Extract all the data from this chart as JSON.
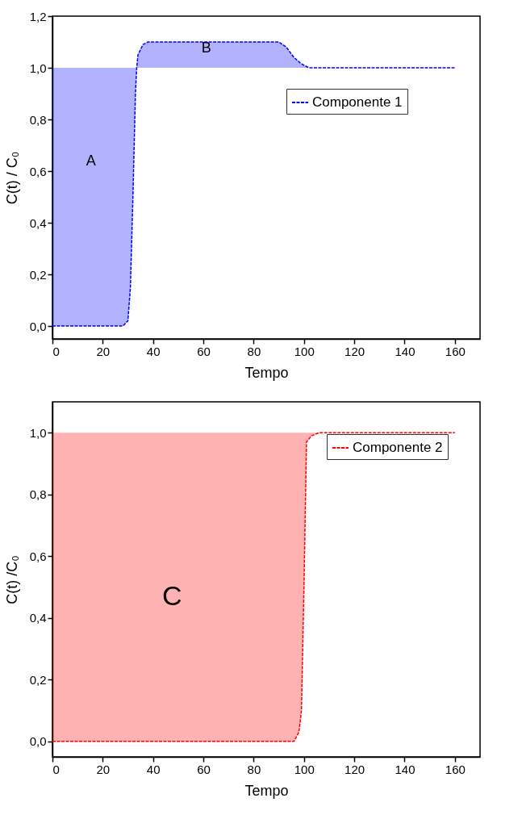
{
  "chart_data": [
    {
      "type": "line",
      "xlabel": "Tempo",
      "ylabel": "C(t) / C₀",
      "xlim": [
        0,
        170
      ],
      "xticks": [
        0,
        20,
        40,
        60,
        80,
        100,
        120,
        140,
        160
      ],
      "ylim": [
        -0.05,
        1.2
      ],
      "yticks": [
        {
          "value": 0,
          "label": "0,0"
        },
        {
          "value": 0.2,
          "label": "0,2"
        },
        {
          "value": 0.4,
          "label": "0,4"
        },
        {
          "value": 0.6,
          "label": "0,6"
        },
        {
          "value": 0.8,
          "label": "0,8"
        },
        {
          "value": 1,
          "label": "1,0"
        },
        {
          "value": 1.2,
          "label": "1,2"
        }
      ],
      "grid": false,
      "legend": "top right",
      "line_style": "dashed",
      "series": [
        {
          "name": "Componente 1",
          "color": "#0000ff",
          "x": [
            0,
            28,
            30,
            31,
            32,
            33,
            33.5,
            34,
            36,
            38,
            90,
            93,
            96,
            99,
            102,
            160
          ],
          "values": [
            0,
            0,
            0.02,
            0.15,
            0.5,
            0.9,
            1.0,
            1.05,
            1.09,
            1.1,
            1.1,
            1.08,
            1.04,
            1.015,
            1.0,
            1.0
          ],
          "lower": [
            0,
            0,
            0.02,
            0.15,
            0.5,
            0.9,
            1.0,
            1.0,
            1.0,
            1.0,
            1.0,
            1.0,
            1.0,
            1.0,
            1.0,
            1.0
          ],
          "upper": [
            1.0,
            1.0,
            1.0,
            1.0,
            1.0,
            1.0,
            1.0,
            1.05,
            1.09,
            1.1,
            1.1,
            1.08,
            1.04,
            1.015,
            1.0,
            1.0
          ]
        }
      ],
      "annotations": [
        "A",
        "B"
      ]
    },
    {
      "type": "line",
      "xlabel": "Tempo",
      "ylabel": "C(t) /C₀",
      "xlim": [
        0,
        170
      ],
      "xticks": [
        0,
        20,
        40,
        60,
        80,
        100,
        120,
        140,
        160
      ],
      "ylim": [
        -0.05,
        1.1
      ],
      "yticks": [
        {
          "value": 0,
          "label": "0,0"
        },
        {
          "value": 0.2,
          "label": "0,2"
        },
        {
          "value": 0.4,
          "label": "0,4"
        },
        {
          "value": 0.6,
          "label": "0,6"
        },
        {
          "value": 0.8,
          "label": "0,8"
        },
        {
          "value": 1,
          "label": "1,0"
        }
      ],
      "grid": false,
      "legend": "top right",
      "line_style": "dashed",
      "series": [
        {
          "name": "Componente 2",
          "color": "#ff0000",
          "x": [
            0,
            96,
            98,
            99,
            100,
            101,
            103,
            106,
            160
          ],
          "values": [
            0,
            0,
            0.03,
            0.1,
            0.5,
            0.97,
            0.99,
            1.0,
            1.0
          ],
          "lower": [
            0,
            0,
            0.03,
            0.1,
            0.5,
            0.97,
            0.99,
            1.0,
            1.0
          ],
          "upper": [
            1.0,
            1.0,
            1.0,
            1.0,
            1.0,
            1.0,
            1.0,
            1.0,
            1.0
          ]
        }
      ],
      "annotations": [
        "C"
      ]
    }
  ]
}
